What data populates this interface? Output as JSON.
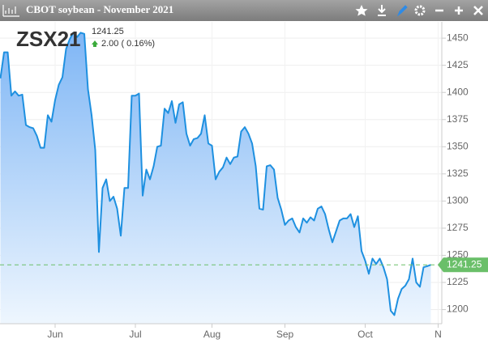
{
  "chart_data": {
    "type": "area-line",
    "title": "CBOT soybean - November 2021",
    "symbol": "ZSX21",
    "change_text": "2.00 ( 0.16%)",
    "last_price": 1241.25,
    "categories": [
      null,
      null,
      null,
      null,
      null,
      null,
      null,
      null,
      null,
      null,
      null,
      null,
      null,
      null,
      null,
      "Jun",
      null,
      null,
      null,
      null,
      null,
      null,
      null,
      null,
      null,
      null,
      null,
      null,
      null,
      null,
      null,
      null,
      null,
      null,
      null,
      null,
      null,
      "Jul",
      null,
      null,
      null,
      null,
      null,
      null,
      null,
      null,
      null,
      null,
      null,
      null,
      null,
      null,
      null,
      null,
      null,
      null,
      null,
      null,
      "Aug",
      null,
      null,
      null,
      null,
      null,
      null,
      null,
      null,
      null,
      null,
      null,
      null,
      null,
      null,
      null,
      null,
      null,
      null,
      null,
      "Sep",
      null,
      null,
      null,
      null,
      null,
      null,
      null,
      null,
      null,
      null,
      null,
      null,
      null,
      null,
      null,
      null,
      null,
      null,
      null,
      null,
      null,
      "Oct",
      null,
      null,
      null,
      null,
      null,
      null,
      null,
      null,
      null,
      null,
      null,
      null,
      null,
      null,
      null,
      null,
      null,
      null,
      null,
      "N"
    ],
    "series": [
      {
        "name": "ZSX21",
        "color": "#1e90e0",
        "values": [
          1413,
          1437,
          1437,
          1397,
          1401,
          1397,
          1398,
          1370,
          1368,
          1367,
          1360,
          1349,
          1349,
          1379,
          1373,
          1393,
          1407,
          1414,
          1440,
          1449,
          1455,
          1451,
          1455,
          1454,
          1403,
          1379,
          1347,
          1253,
          1312,
          1320,
          1300,
          1304,
          1293,
          1268,
          1312,
          1312,
          1397,
          1397,
          1399,
          1305,
          1329,
          1320,
          1332,
          1350,
          1351,
          1385,
          1381,
          1392,
          1372,
          1389,
          1391,
          1362,
          1351,
          1357,
          1358,
          1362,
          1379,
          1353,
          1351,
          1320,
          1327,
          1331,
          1340,
          1334,
          1340,
          1341,
          1364,
          1368,
          1362,
          1353,
          1332,
          1293,
          1292,
          1332,
          1333,
          1329,
          1303,
          1292,
          1278,
          1282,
          1284,
          1276,
          1271,
          1284,
          1280,
          1285,
          1282,
          1293,
          1295,
          1288,
          1274,
          1262,
          1272,
          1282,
          1284,
          1284,
          1288,
          1276,
          1286,
          1254,
          1245,
          1233,
          1247,
          1242,
          1247,
          1239,
          1228,
          1199,
          1195,
          1210,
          1219,
          1222,
          1228,
          1247,
          1225,
          1221,
          1239,
          1240,
          1241.25,
          null,
          null
        ]
      }
    ],
    "ylim": [
      1187,
      1465
    ],
    "yticks": [
      1200,
      1225,
      1250,
      1275,
      1300,
      1325,
      1350,
      1375,
      1400,
      1425,
      1450
    ],
    "grid": true,
    "last_price_color": "#6abf69"
  }
}
